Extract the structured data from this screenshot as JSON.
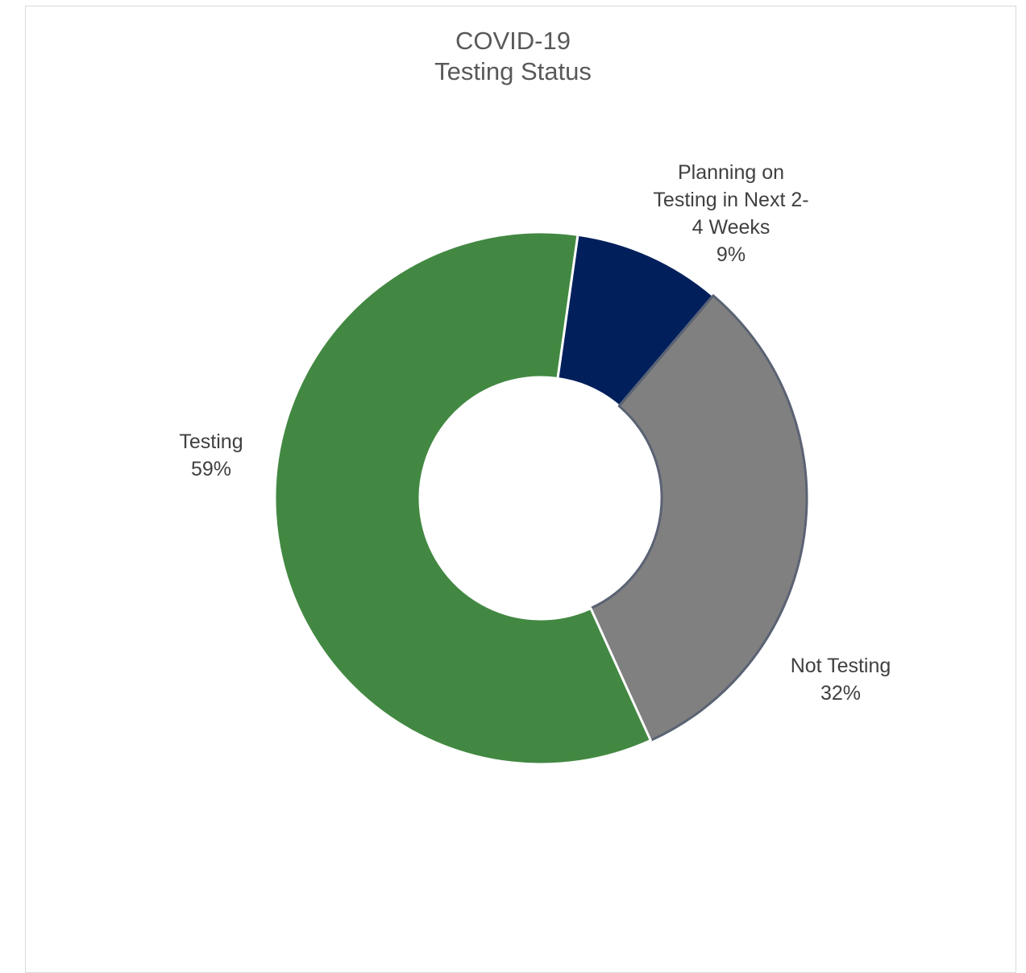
{
  "chart_data": {
    "type": "pie",
    "variant": "donut",
    "title": [
      "COVID-19",
      "Testing Status"
    ],
    "series": [
      {
        "name": "",
        "slices": [
          {
            "label_lines": [
              "Planning on",
              "Testing in Next 2-",
              "4 Weeks"
            ],
            "value": 9,
            "value_label": "9%",
            "color": "#001f5b"
          },
          {
            "label_lines": [
              "Not Testing"
            ],
            "value": 32,
            "value_label": "32%",
            "color": "#808080"
          },
          {
            "label_lines": [
              "Testing"
            ],
            "value": 59,
            "value_label": "59%",
            "color": "#428842"
          }
        ]
      }
    ],
    "start_angle_deg": 8,
    "direction": "clockwise",
    "legend": "none",
    "data_labels": "outside"
  }
}
